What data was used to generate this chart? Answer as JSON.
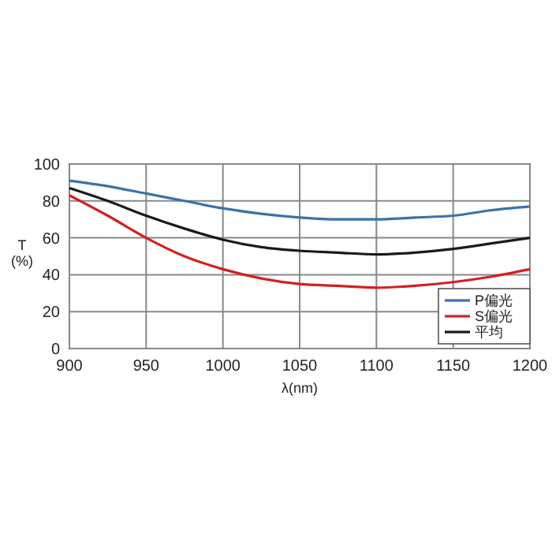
{
  "chart_data": {
    "type": "line",
    "xlabel": "λ(nm)",
    "ylabel": "T\n(%)",
    "x": [
      900,
      925,
      950,
      975,
      1000,
      1025,
      1050,
      1075,
      1100,
      1125,
      1150,
      1175,
      1200
    ],
    "series": [
      {
        "name": "P偏光",
        "color": "#3a72a8",
        "values": [
          91,
          88,
          84,
          80,
          76,
          73,
          71,
          70,
          70,
          71,
          72,
          75,
          77
        ]
      },
      {
        "name": "S偏光",
        "color": "#d42020",
        "values": [
          83,
          72,
          60,
          50,
          43,
          38,
          35,
          34,
          33,
          34,
          36,
          39,
          43
        ]
      },
      {
        "name": "平均",
        "color": "#1a1a1a",
        "values": [
          87,
          80,
          72,
          65,
          59,
          55,
          53,
          52,
          51,
          52,
          54,
          57,
          60
        ]
      }
    ],
    "xlim": [
      900,
      1200
    ],
    "xticks": [
      900,
      950,
      1000,
      1050,
      1100,
      1150,
      1200
    ],
    "ylim": [
      0,
      100
    ],
    "yticks": [
      0,
      20,
      40,
      60,
      80,
      100
    ],
    "grid": true,
    "legend": "bottom right",
    "marker": "none",
    "line_style": "solid"
  }
}
